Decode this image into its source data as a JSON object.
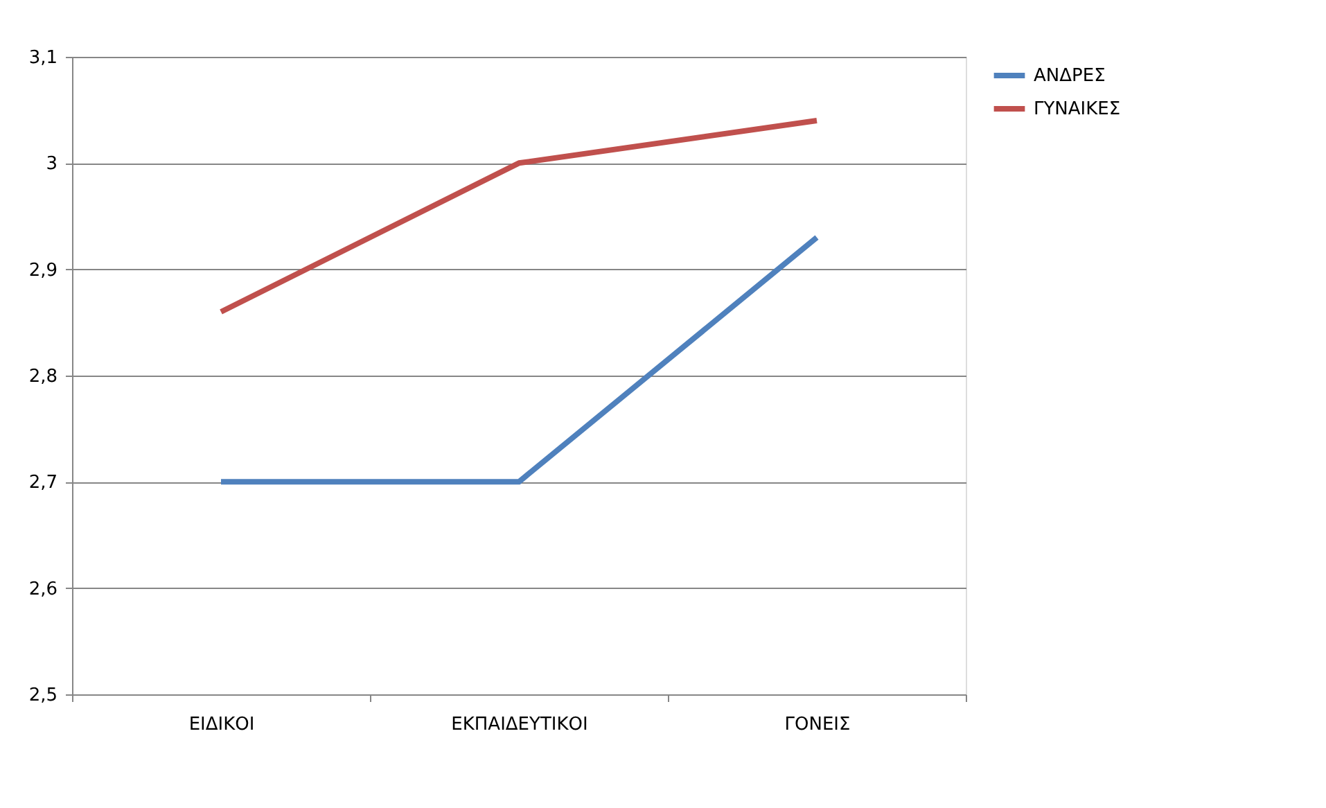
{
  "chart_data": {
    "type": "line",
    "categories": [
      "ΕΙΔΙΚΟΙ",
      "ΕΚΠΑΙΔΕΥΤΙΚΟΙ",
      "ΓΟΝΕΙΣ"
    ],
    "series": [
      {
        "name": "ΑΝΔΡΕΣ",
        "color": "#4f81bd",
        "values": [
          2.7,
          2.7,
          2.93
        ]
      },
      {
        "name": "ΓΥΝΑΙΚΕΣ",
        "color": "#c0504d",
        "values": [
          2.86,
          3.0,
          3.04
        ]
      }
    ],
    "ylim": [
      2.5,
      3.1
    ],
    "yticks": [
      {
        "value": 2.5,
        "label": "2,5"
      },
      {
        "value": 2.6,
        "label": "2,6"
      },
      {
        "value": 2.7,
        "label": "2,7"
      },
      {
        "value": 2.8,
        "label": "2,8"
      },
      {
        "value": 2.9,
        "label": "2,9"
      },
      3,
      {
        "value": 3.1,
        "label": "3,1"
      }
    ],
    "grid": "y",
    "legend": "right",
    "marker": "none",
    "line_style": "solid"
  }
}
